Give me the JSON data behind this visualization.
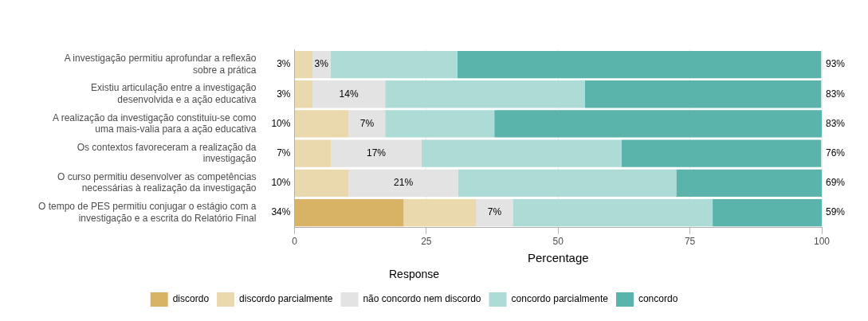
{
  "chart_data": {
    "type": "bar",
    "orientation": "horizontal",
    "stacked": true,
    "xlabel": "Percentage",
    "legend_title": "Response",
    "legend": "bottom",
    "grid": "x",
    "categories": [
      "A investigação permitiu aprofundar a reflexão sobre a prática",
      "Existiu articulação entre a investigação desenvolvida e a ação educativa",
      "A realização da investigação constituiu-se como uma mais-valia para a ação educativa",
      "Os contextos favoreceram a realização da investigação",
      "O curso permitiu desenvolver as competências necessárias à realização da investigação",
      "O tempo de PES permitiu conjugar o estágio com a investigação e a escrita do Relatório Final"
    ],
    "series": [
      {
        "name": "discordo",
        "color": "#d8b365",
        "values": [
          0,
          0,
          0,
          0,
          0,
          20.7
        ]
      },
      {
        "name": "discordo parcialmente",
        "color": "#ebd9ae",
        "values": [
          3.4,
          3.4,
          10.3,
          6.9,
          10.3,
          13.8
        ]
      },
      {
        "name": "não concordo nem discordo",
        "color": "#e3e3e3",
        "values": [
          3.4,
          13.8,
          6.9,
          17.2,
          20.7,
          6.9
        ],
        "value_labels": [
          "3%",
          "14%",
          "7%",
          "17%",
          "21%",
          "7%"
        ]
      },
      {
        "name": "concordo parcialmente",
        "color": "#acdcd5",
        "values": [
          24.1,
          37.9,
          20.7,
          37.9,
          41.4,
          37.9
        ]
      },
      {
        "name": "concordo",
        "color": "#5ab4ac",
        "values": [
          69.0,
          44.8,
          62.1,
          37.9,
          27.6,
          20.7
        ]
      }
    ],
    "xlim": [
      0,
      100
    ],
    "xticks": [
      0,
      25,
      50,
      75,
      100
    ],
    "annotations": [
      "3%",
      "3%",
      "10%",
      "7%",
      "10%",
      "34%",
      "93%",
      "83%",
      "83%",
      "76%",
      "69%",
      "59%"
    ]
  }
}
